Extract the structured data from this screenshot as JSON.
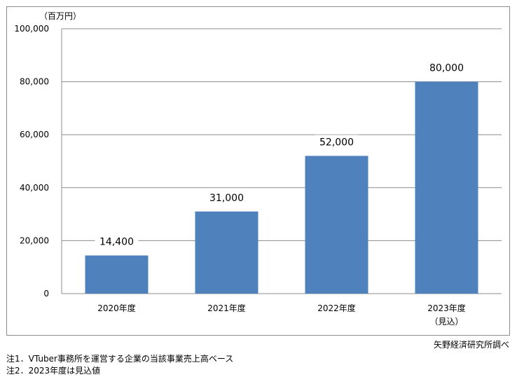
{
  "chart_data": {
    "type": "bar",
    "ylabel": "（百万円）",
    "categories": [
      "2020年度",
      "2021年度",
      "2022年度",
      "2023年度"
    ],
    "category_notes": [
      "",
      "",
      "",
      "（見込）"
    ],
    "values": [
      14400,
      31000,
      52000,
      80000
    ],
    "data_labels": [
      "14,400",
      "31,000",
      "52,000",
      "80,000"
    ],
    "ylim": [
      0,
      100000
    ],
    "yticks": [
      0,
      20000,
      40000,
      60000,
      80000,
      100000
    ],
    "ytick_labels": [
      "0",
      "20,000",
      "40,000",
      "60,000",
      "80,000",
      "100,000"
    ],
    "grid": true,
    "legend": "none",
    "bar_color": "#4f81bd",
    "grid_color": "#8c8c8c"
  },
  "source": "矢野経済研究所調べ",
  "notes": [
    "注1．VTuber事務所を運営する企業の当該事業売上高ベース",
    "注2．2023年度は見込値"
  ]
}
